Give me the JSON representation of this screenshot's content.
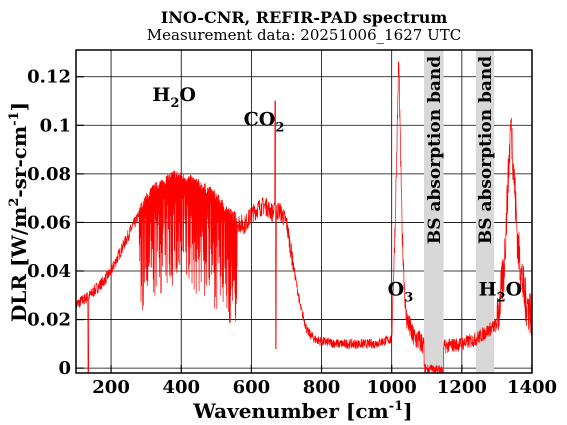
{
  "chart_data": {
    "type": "line",
    "title": "INO-CNR, REFIR-PAD spectrum",
    "subtitle": "Measurement data: 20251006_1627 UTC",
    "xlabel": {
      "main": "Wavenumber [cm",
      "sup": "-1",
      "close": "]"
    },
    "ylabel": {
      "part1": "DLR [W/m",
      "sup1": "2",
      "part2": "-sr-cm",
      "sup2": "-1",
      "close": "]"
    },
    "xlim": [
      100,
      1400
    ],
    "ylim": [
      -0.002,
      0.131
    ],
    "xticks": [
      200,
      400,
      600,
      800,
      1000,
      1200,
      1400
    ],
    "xticklabels": [
      "200",
      "400",
      "600",
      "800",
      "1000",
      "1200",
      "1400"
    ],
    "yticks": [
      0,
      0.02,
      0.04,
      0.06,
      0.08,
      0.1,
      0.12
    ],
    "yticklabels": [
      "0",
      "0.02",
      "0.04",
      "0.06",
      "0.08",
      "0.1",
      "0.12"
    ],
    "grid": true,
    "line_color": "#ff0000",
    "band_color": "#d8d8d8",
    "bands": [
      {
        "label": "BS absorption band",
        "x0": 1092,
        "x1": 1148
      },
      {
        "label": "BS absorption band",
        "x0": 1240,
        "x1": 1292
      }
    ],
    "annotations": [
      {
        "base": "H",
        "sub": "2",
        "rest": "O",
        "x": 380,
        "y": 0.11
      },
      {
        "base": "CO",
        "sub": "2",
        "rest": "",
        "x": 636,
        "y": 0.1
      },
      {
        "base": "O",
        "sub": "3",
        "rest": "",
        "x": 1025,
        "y": 0.03
      },
      {
        "base": "H",
        "sub": "2",
        "rest": "O",
        "x": 1310,
        "y": 0.03
      }
    ],
    "series": [
      {
        "values_description": "",
        "points": [
          [
            100,
            0.026
          ],
          [
            120,
            0.028
          ],
          [
            140,
            0.03
          ],
          [
            160,
            0.033
          ],
          [
            180,
            0.036
          ],
          [
            200,
            0.04
          ],
          [
            220,
            0.046
          ],
          [
            240,
            0.052
          ],
          [
            260,
            0.058
          ],
          [
            280,
            0.063
          ],
          [
            300,
            0.068
          ],
          [
            320,
            0.072
          ],
          [
            340,
            0.074
          ],
          [
            360,
            0.076
          ],
          [
            380,
            0.078
          ],
          [
            400,
            0.077
          ],
          [
            420,
            0.076
          ],
          [
            440,
            0.075
          ],
          [
            460,
            0.073
          ],
          [
            480,
            0.071
          ],
          [
            500,
            0.069
          ],
          [
            520,
            0.065
          ],
          [
            540,
            0.062
          ],
          [
            560,
            0.06
          ],
          [
            580,
            0.059
          ],
          [
            600,
            0.063
          ],
          [
            620,
            0.066
          ],
          [
            640,
            0.067
          ],
          [
            660,
            0.064
          ],
          [
            680,
            0.065
          ],
          [
            700,
            0.06
          ],
          [
            720,
            0.042
          ],
          [
            740,
            0.025
          ],
          [
            760,
            0.015
          ],
          [
            780,
            0.012
          ],
          [
            800,
            0.011
          ],
          [
            850,
            0.01
          ],
          [
            900,
            0.01
          ],
          [
            950,
            0.01
          ],
          [
            1000,
            0.012
          ],
          [
            1010,
            0.06
          ],
          [
            1020,
            0.126
          ],
          [
            1030,
            0.055
          ],
          [
            1040,
            0.022
          ],
          [
            1060,
            0.013
          ],
          [
            1090,
            0.01
          ],
          [
            1150,
            0.009
          ],
          [
            1200,
            0.01
          ],
          [
            1240,
            0.012
          ],
          [
            1300,
            0.018
          ],
          [
            1320,
            0.04
          ],
          [
            1340,
            0.102
          ],
          [
            1360,
            0.05
          ],
          [
            1380,
            0.028
          ],
          [
            1400,
            0.022
          ]
        ]
      }
    ]
  }
}
